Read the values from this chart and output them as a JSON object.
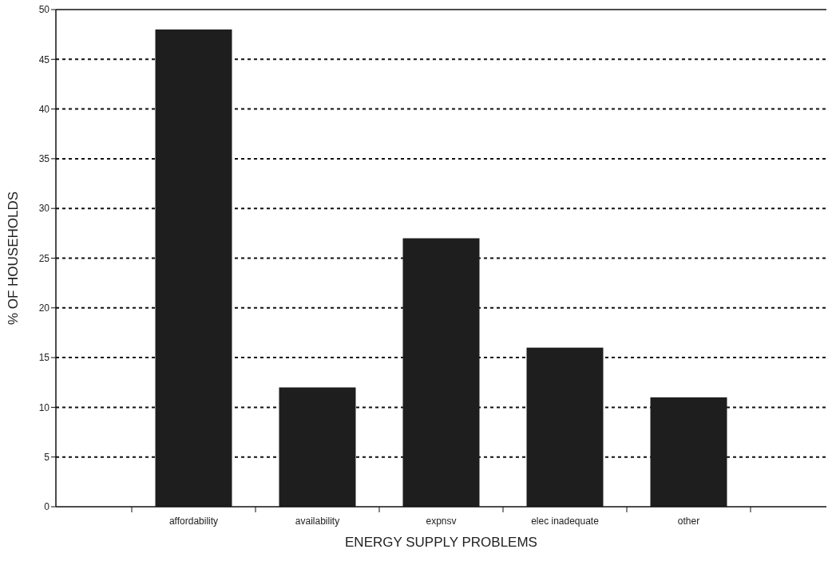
{
  "chart_data": {
    "type": "bar",
    "xlabel": "ENERGY SUPPLY PROBLEMS",
    "ylabel": "% OF HOUSEHOLDS",
    "categories": [
      "affordability",
      "availability",
      "expnsv",
      "elec inadequate",
      "other"
    ],
    "values": [
      48,
      12,
      27,
      16,
      11
    ],
    "color": "#1e1e1e",
    "ylim": [
      0,
      50
    ],
    "yticks": [
      0,
      5,
      10,
      15,
      20,
      25,
      30,
      35,
      40,
      45,
      50
    ],
    "grid": "y",
    "line_style": "dotted"
  }
}
